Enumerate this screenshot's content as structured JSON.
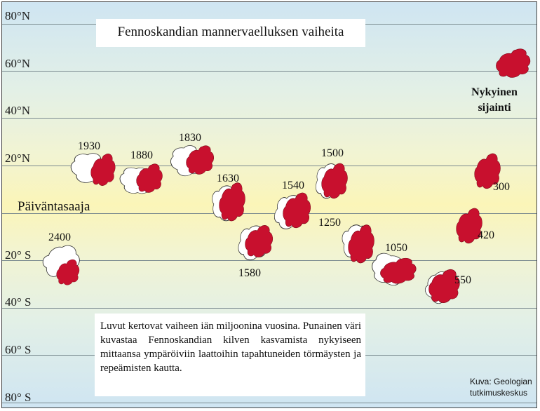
{
  "title": "Fennoskandian mannervaelluksen vaiheita",
  "latitudes": [
    "80°N",
    "60°N",
    "40°N",
    "20°N",
    "20° S",
    "40° S",
    "60° S",
    "80° S"
  ],
  "equator_label": "Päiväntasaaja",
  "ages": [
    "2400",
    "1930",
    "1880",
    "1830",
    "1630",
    "1580",
    "1540",
    "1500",
    "1250",
    "1050",
    "550",
    "420",
    "300"
  ],
  "current_position": [
    "Nykyinen",
    "sijainti"
  ],
  "note": "Luvut kertovat vaiheen iän miljoonina vuosina. Punainen väri kuvastaa Fennoskandian kilven kasvamista nykyiseen mittaansa ympäröiviin laattoihin tapahtuneiden törmäysten ja repeämisten kautta.",
  "credit": [
    "Kuva: Geologian",
    "tutkimuskeskus"
  ],
  "colors": {
    "shield_red": "#c8102e",
    "outline_white": "#ffffff",
    "grid": "#7a8a8f"
  }
}
